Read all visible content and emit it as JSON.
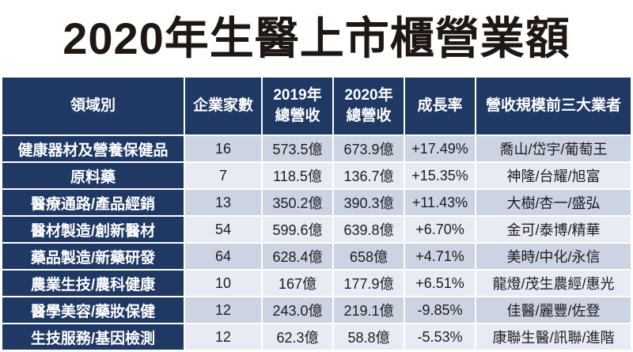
{
  "title": "2020年生醫上市櫃營業額",
  "colors": {
    "header_bg": "#1f3864",
    "row_band_dark": "#ccd3e2",
    "row_band_light": "#e9ebf4",
    "header_text": "#ffffff",
    "cell_text": "#1c1c22",
    "title_text": "#1f1712"
  },
  "chart_data": {
    "type": "table",
    "title": "2020年生醫上市櫃營業額",
    "columns": [
      {
        "key": "field",
        "lines": [
          "領域別"
        ]
      },
      {
        "key": "count",
        "lines": [
          "企業家數"
        ]
      },
      {
        "key": "rev2019",
        "lines": [
          "2019年",
          "總營收"
        ]
      },
      {
        "key": "rev2020",
        "lines": [
          "2020年",
          "總營收"
        ]
      },
      {
        "key": "growth",
        "lines": [
          "成長率"
        ]
      },
      {
        "key": "top3",
        "lines": [
          "營收規模前三大業者"
        ]
      }
    ],
    "rows": [
      {
        "field": "健康器材及營養保健品",
        "count": "16",
        "rev2019": "573.5億",
        "rev2020": "673.9億",
        "growth": "+17.49%",
        "top3": "喬山/岱宇/葡萄王"
      },
      {
        "field": "原料藥",
        "count": "7",
        "rev2019": "118.5億",
        "rev2020": "136.7億",
        "growth": "+15.35%",
        "top3": "神隆/台耀/旭富"
      },
      {
        "field": "醫療通路/產品經銷",
        "count": "13",
        "rev2019": "350.2億",
        "rev2020": "390.3億",
        "growth": "+11.43%",
        "top3": "大樹/杏一/盛弘"
      },
      {
        "field": "醫材製造/創新醫材",
        "count": "54",
        "rev2019": "599.6億",
        "rev2020": "639.8億",
        "growth": "+6.70%",
        "top3": "金可/泰博/精華"
      },
      {
        "field": "藥品製造/新藥研發",
        "count": "64",
        "rev2019": "628.4億",
        "rev2020": "658億",
        "growth": "+4.71%",
        "top3": "美時/中化/永信"
      },
      {
        "field": "農業生技/農科健康",
        "count": "10",
        "rev2019": "167億",
        "rev2020": "177.9億",
        "growth": "+6.51%",
        "top3": "龍燈/茂生農經/惠光"
      },
      {
        "field": "醫學美容/藥妝保健",
        "count": "12",
        "rev2019": "243.0億",
        "rev2020": "219.1億",
        "growth": "-9.85%",
        "top3": "佳醫/麗豐/佐登"
      },
      {
        "field": "生技服務/基因檢測",
        "count": "12",
        "rev2019": "62.3億",
        "rev2020": "58.8億",
        "growth": "-5.53%",
        "top3": "康聯生醫/訊聯/進階"
      }
    ]
  }
}
